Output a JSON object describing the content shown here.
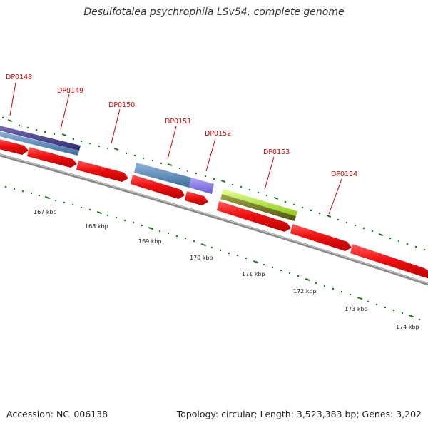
{
  "title": "Desulfotalea psychrophila LSv54, complete genome",
  "footer": {
    "accession": "Accession: NC_006138",
    "summary": "Topology: circular; Length: 3,523,383 bp; Genes: 3,202"
  },
  "colors": {
    "backbone": "#8a8a8a",
    "cds_forward": "#ee1111",
    "label": "#cc0000",
    "tick": "#1a7a1a"
  },
  "gene_labels": [
    "DP0148",
    "DP0149",
    "DP0150",
    "DP0151",
    "DP0152",
    "DP0153",
    "DP0154"
  ],
  "tick_labels": [
    "167 kbp",
    "168 kbp",
    "169 kbp",
    "170 kbp",
    "171 kbp",
    "172 kbp",
    "173 kbp",
    "174 kbp"
  ]
}
